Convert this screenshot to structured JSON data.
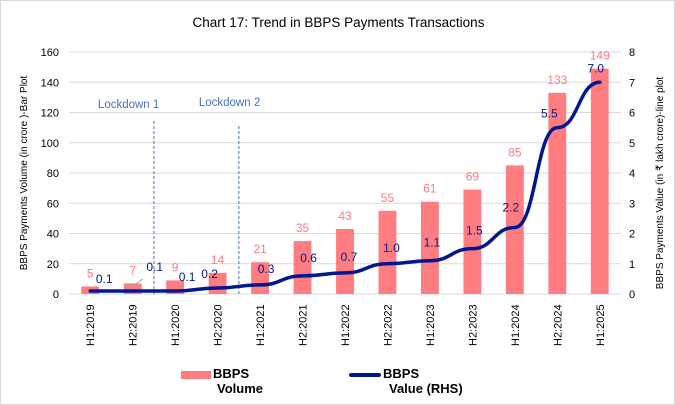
{
  "chart_data": {
    "type": "bar+line",
    "title": "Chart 17: Trend in BBPS  Payments Transactions",
    "categories": [
      "H1:2019",
      "H2:2019",
      "H1:2020",
      "H2:2020",
      "H1:2021",
      "H2:2021",
      "H1:2022",
      "H2:2022",
      "H1:2023",
      "H2:2023",
      "H1:2024",
      "H2:2024",
      "H1:2025"
    ],
    "series": [
      {
        "name": "BBPS Volume",
        "type": "bar",
        "axis": "left",
        "color": "#ff7c80",
        "values": [
          5,
          7,
          9,
          14,
          21,
          35,
          43,
          55,
          61,
          69,
          85,
          133,
          149
        ],
        "labels": [
          "5",
          "7",
          "9",
          "14",
          "21",
          "35",
          "43",
          "55",
          "61",
          "69",
          "85",
          "133",
          "149"
        ]
      },
      {
        "name": "BBPS Value (RHS)",
        "type": "line",
        "axis": "right",
        "color": "#00188f",
        "values": [
          0.1,
          0.1,
          0.1,
          0.2,
          0.3,
          0.6,
          0.7,
          1.0,
          1.1,
          1.5,
          2.2,
          5.5,
          7.0
        ],
        "labels": [
          "0.1",
          "0.1",
          "0.1",
          "0.2",
          "0.3",
          "0.6",
          "0.7",
          "1.0",
          "1.1",
          "1.5",
          "2.2",
          "5.5",
          "7.0"
        ]
      }
    ],
    "ylabel": "BBPS  Payments Volume (in crore )-Bar Plot",
    "y2label": "BBPS Payments Value (in ₹ lakh crore)-line plot",
    "ylim": [
      0,
      160
    ],
    "y2lim": [
      0,
      8
    ],
    "yticks": [
      0,
      20,
      40,
      60,
      80,
      100,
      120,
      140,
      160
    ],
    "y2ticks": [
      0,
      1,
      2,
      3,
      4,
      5,
      6,
      7,
      8
    ],
    "grid": true,
    "legend_placement": "bottom",
    "legend": [
      {
        "line1": "BBPS",
        "line2": "Volume"
      },
      {
        "line1": "BBPS",
        "line2": "Value (RHS)"
      }
    ],
    "annotations": [
      {
        "text": "Lockdown 1",
        "between": [
          "H2:2019",
          "H1:2020"
        ]
      },
      {
        "text": "Lockdown 2",
        "between": [
          "H2:2020",
          "H1:2021"
        ]
      }
    ],
    "annotation_color": "#4472c4"
  }
}
